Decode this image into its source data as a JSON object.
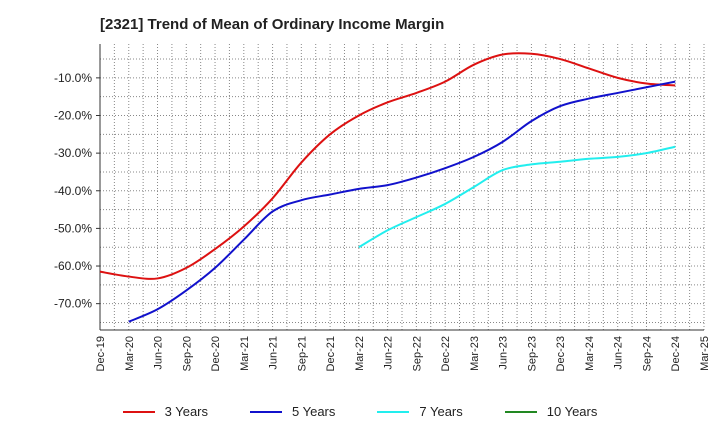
{
  "chart_data": {
    "type": "line",
    "title": "[2321]  Trend of Mean of Ordinary Income Margin",
    "xlabel": "",
    "ylabel": "",
    "ylim": [
      -77,
      -1
    ],
    "yticks": [
      -10,
      -20,
      -30,
      -40,
      -50,
      -60,
      -70
    ],
    "ytick_labels": [
      "-10.0%",
      "-20.0%",
      "-30.0%",
      "-40.0%",
      "-50.0%",
      "-60.0%",
      "-70.0%"
    ],
    "categories": [
      "Dec-19",
      "Mar-20",
      "Jun-20",
      "Sep-20",
      "Dec-20",
      "Mar-21",
      "Jun-21",
      "Sep-21",
      "Dec-21",
      "Mar-22",
      "Jun-22",
      "Sep-22",
      "Dec-22",
      "Mar-23",
      "Jun-23",
      "Sep-23",
      "Dec-23",
      "Mar-24",
      "Jun-24",
      "Sep-24",
      "Dec-24",
      "Mar-25"
    ],
    "grid": true,
    "legend_position": "bottom",
    "series": [
      {
        "name": "3 Years",
        "color": "#dd1111",
        "values": [
          -61.5,
          -62.8,
          -63.3,
          -60.5,
          -55.5,
          -49.5,
          -42.0,
          -32.5,
          -25.0,
          -20.0,
          -16.5,
          -14.0,
          -11.0,
          -6.5,
          -3.8,
          -3.6,
          -5.0,
          -7.5,
          -10.0,
          -11.5,
          -12.0,
          null
        ]
      },
      {
        "name": "5 Years",
        "color": "#1111cc",
        "values": [
          null,
          -74.8,
          -71.5,
          -66.5,
          -60.5,
          -53.0,
          -45.5,
          -42.5,
          -41.0,
          -39.5,
          -38.5,
          -36.5,
          -34.0,
          -31.0,
          -27.0,
          -21.5,
          -17.5,
          -15.5,
          -14.0,
          -12.5,
          -11.0,
          null
        ]
      },
      {
        "name": "7 Years",
        "color": "#22eeee",
        "values": [
          null,
          null,
          null,
          null,
          null,
          null,
          null,
          null,
          null,
          -55.0,
          -50.5,
          -47.0,
          -43.5,
          -39.0,
          -34.5,
          -33.0,
          -32.3,
          -31.5,
          -31.0,
          -30.0,
          -28.3,
          null
        ]
      },
      {
        "name": "10 Years",
        "color": "#228822",
        "values": [
          null,
          null,
          null,
          null,
          null,
          null,
          null,
          null,
          null,
          null,
          null,
          null,
          null,
          null,
          null,
          null,
          null,
          null,
          null,
          null,
          null,
          null
        ]
      }
    ]
  }
}
